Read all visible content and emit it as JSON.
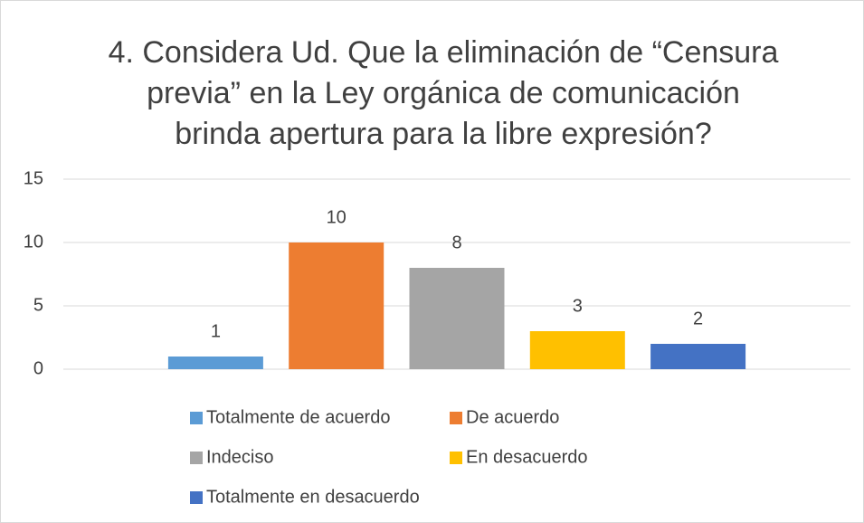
{
  "chart_data": {
    "type": "bar",
    "title": [
      "4. Considera Ud. Que la eliminación de “Censura",
      "previa” en la Ley orgánica de comunicación",
      "brinda apertura para la libre expresión?"
    ],
    "categories": [
      null
    ],
    "series": [
      {
        "name": "Totalmente de acuerdo",
        "color": "#5b9bd5",
        "values": [
          1
        ]
      },
      {
        "name": "De acuerdo",
        "color": "#ed7d31",
        "values": [
          10
        ]
      },
      {
        "name": "Indeciso",
        "color": "#a5a5a5",
        "values": [
          8
        ]
      },
      {
        "name": "En desacuerdo",
        "color": "#ffc000",
        "values": [
          3
        ]
      },
      {
        "name": "Totalmente en desacuerdo",
        "color": "#4472c4",
        "values": [
          2
        ]
      }
    ],
    "ylim": [
      0,
      15
    ],
    "yticks": [
      0,
      5,
      10,
      15
    ],
    "grid": true,
    "legend": "bottom"
  }
}
